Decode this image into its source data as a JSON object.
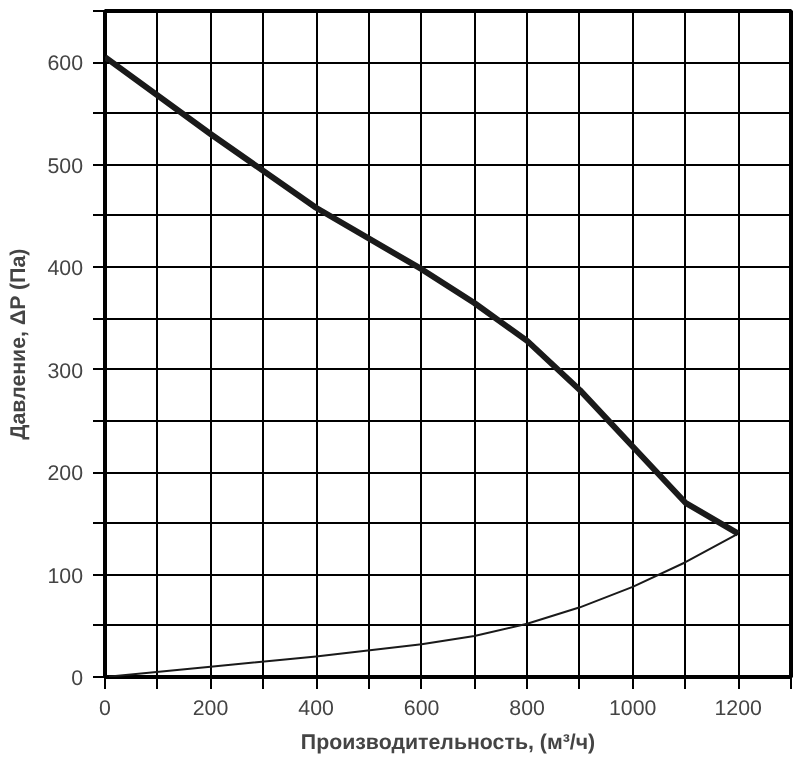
{
  "chart_data": {
    "type": "line",
    "xlabel": "Производительность, (м³/ч)",
    "ylabel": "Давление, ΔP (Па)",
    "xlim": [
      0,
      1300
    ],
    "ylim": [
      0,
      650
    ],
    "xticks": [
      0,
      {
        "value": 100,
        "label": null
      },
      200,
      {
        "value": 300,
        "label": null
      },
      400,
      {
        "value": 500,
        "label": null
      },
      600,
      {
        "value": 700,
        "label": null
      },
      800,
      {
        "value": 900,
        "label": null
      },
      1000,
      {
        "value": 1100,
        "label": null
      },
      1200,
      {
        "value": 1300,
        "label": null
      }
    ],
    "yticks": [
      0,
      {
        "value": 50,
        "label": null
      },
      100,
      {
        "value": 150,
        "label": null
      },
      200,
      {
        "value": 250,
        "label": null
      },
      300,
      {
        "value": 350,
        "label": null
      },
      400,
      {
        "value": 450,
        "label": null
      },
      500,
      {
        "value": 550,
        "label": null
      },
      600,
      {
        "value": 650,
        "label": null
      }
    ],
    "grid": true,
    "marker": "none",
    "line_style": "solid",
    "series": [
      {
        "color": "#1a1a1a",
        "x": [
          0,
          200,
          400,
          600,
          700,
          800,
          900,
          1000,
          1100,
          1200
        ],
        "values": [
          605,
          530,
          458,
          398,
          365,
          328,
          280,
          225,
          170,
          140
        ]
      },
      {
        "color": "#1a1a1a",
        "x": [
          0,
          200,
          400,
          600,
          700,
          800,
          900,
          1000,
          1100,
          1200
        ],
        "values": [
          0,
          10,
          20,
          32,
          40,
          52,
          68,
          88,
          112,
          140
        ]
      }
    ]
  }
}
